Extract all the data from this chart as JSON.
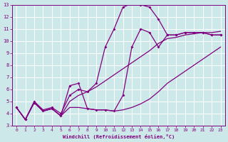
{
  "bg_color": "#cce8e8",
  "grid_color": "#ffffff",
  "line_color": "#800080",
  "xlabel": "Windchill (Refroidissement éolien,°C)",
  "xlim": [
    -0.5,
    23.5
  ],
  "ylim": [
    3,
    13
  ],
  "yticks": [
    3,
    4,
    5,
    6,
    7,
    8,
    9,
    10,
    11,
    12,
    13
  ],
  "xticks": [
    0,
    1,
    2,
    3,
    4,
    5,
    6,
    7,
    8,
    9,
    10,
    11,
    12,
    13,
    14,
    15,
    16,
    17,
    18,
    19,
    20,
    21,
    22,
    23
  ],
  "curve1_x": [
    0,
    1,
    2,
    3,
    4,
    5,
    6,
    7,
    8,
    9,
    10,
    11,
    12,
    13,
    14,
    15,
    16,
    17,
    18,
    19,
    20,
    21,
    22,
    23
  ],
  "curve1_y": [
    4.5,
    3.5,
    4.9,
    4.2,
    4.4,
    3.8,
    4.5,
    4.5,
    4.4,
    4.3,
    4.3,
    4.2,
    4.3,
    4.5,
    4.8,
    5.2,
    5.8,
    6.5,
    7.0,
    7.5,
    8.0,
    8.5,
    9.0,
    9.5
  ],
  "curve2_x": [
    0,
    1,
    2,
    3,
    4,
    5,
    6,
    7,
    8,
    9,
    10,
    11,
    12,
    13,
    14,
    15,
    16,
    17,
    18,
    19,
    20,
    21,
    22,
    23
  ],
  "curve2_y": [
    4.5,
    3.5,
    4.9,
    4.2,
    4.4,
    3.8,
    5.0,
    5.5,
    5.8,
    6.2,
    6.7,
    7.2,
    7.7,
    8.2,
    8.7,
    9.2,
    9.8,
    10.2,
    10.3,
    10.5,
    10.6,
    10.7,
    10.7,
    10.8
  ],
  "curve3_x": [
    0,
    1,
    2,
    3,
    4,
    5,
    6,
    7,
    8,
    9,
    10,
    11,
    12,
    13,
    14,
    15,
    16,
    17,
    18,
    19,
    20,
    21,
    22,
    23
  ],
  "curve3_y": [
    4.5,
    3.5,
    5.0,
    4.3,
    4.5,
    4.0,
    5.5,
    6.0,
    5.8,
    6.5,
    9.5,
    11.0,
    12.8,
    13.1,
    13.0,
    12.8,
    11.8,
    10.5,
    10.5,
    10.7,
    10.7,
    10.7,
    10.5,
    10.5
  ],
  "curve4_x": [
    0,
    1,
    2,
    3,
    4,
    5,
    6,
    7,
    8,
    9,
    10,
    11,
    12,
    13,
    14,
    15,
    16,
    17,
    18,
    19,
    20,
    21,
    22,
    23
  ],
  "curve4_y": [
    4.5,
    3.5,
    4.9,
    4.2,
    4.4,
    3.8,
    6.3,
    6.5,
    4.4,
    4.3,
    4.3,
    4.2,
    5.5,
    9.5,
    11.0,
    10.7,
    9.5,
    10.5,
    10.5,
    10.7,
    10.7,
    10.7,
    10.5,
    10.5
  ]
}
